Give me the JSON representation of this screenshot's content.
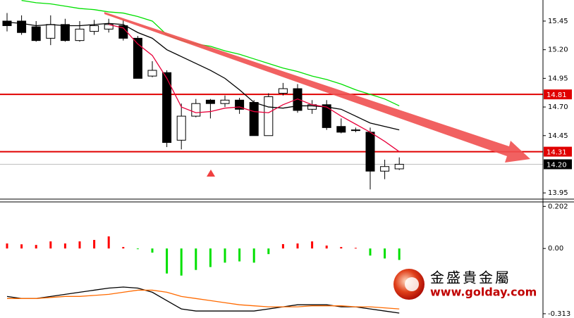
{
  "chart_data": [
    {
      "type": "candlestick",
      "open": [
        15.45,
        15.45,
        15.4,
        15.3,
        15.42,
        15.28,
        15.36,
        15.38,
        15.41,
        15.3,
        14.97,
        15.0,
        14.41,
        14.62,
        14.76,
        14.73,
        14.76,
        14.74,
        14.45,
        14.82,
        14.86,
        14.68,
        14.72,
        14.53,
        14.5,
        14.48,
        14.14,
        14.16
      ],
      "high": [
        15.52,
        15.5,
        15.45,
        15.5,
        15.47,
        15.45,
        15.46,
        15.47,
        15.46,
        15.32,
        15.1,
        15.02,
        14.73,
        14.77,
        14.77,
        14.8,
        14.78,
        14.76,
        14.82,
        14.91,
        14.9,
        14.76,
        14.76,
        14.6,
        14.52,
        14.52,
        14.24,
        14.26
      ],
      "low": [
        15.36,
        15.33,
        15.27,
        15.24,
        15.27,
        15.27,
        15.33,
        15.35,
        15.28,
        14.95,
        14.96,
        14.35,
        14.33,
        14.61,
        14.6,
        14.7,
        14.64,
        14.45,
        14.45,
        14.8,
        14.65,
        14.64,
        14.5,
        14.47,
        14.48,
        13.98,
        14.07,
        14.15
      ],
      "close": [
        15.41,
        15.35,
        15.28,
        15.42,
        15.28,
        15.38,
        15.41,
        15.42,
        15.3,
        14.95,
        15.02,
        14.39,
        14.62,
        14.73,
        14.73,
        14.76,
        14.68,
        14.45,
        14.79,
        14.86,
        14.67,
        14.72,
        14.52,
        14.48,
        14.5,
        14.14,
        14.18,
        14.2
      ],
      "up_color": "#ffffff",
      "down_color": "#000000",
      "lines": [
        {
          "color": "#00e000",
          "values": [
            null,
            15.63,
            15.61,
            15.6,
            15.58,
            15.56,
            15.55,
            15.53,
            15.52,
            15.49,
            15.45,
            15.33,
            15.28,
            15.25,
            15.23,
            15.19,
            15.16,
            15.12,
            15.08,
            15.04,
            15.01,
            14.97,
            14.94,
            14.9,
            14.85,
            14.81,
            14.77,
            14.71
          ]
        },
        {
          "color": "#000000",
          "values": [
            15.44,
            15.43,
            15.41,
            15.42,
            15.41,
            15.41,
            15.42,
            15.43,
            15.42,
            15.35,
            15.3,
            15.2,
            15.14,
            15.08,
            15.02,
            14.95,
            14.85,
            14.74,
            14.7,
            14.69,
            14.71,
            14.71,
            14.7,
            14.68,
            14.62,
            14.56,
            14.53,
            14.5
          ]
        },
        {
          "color": "#e8003a",
          "values": [
            null,
            null,
            null,
            null,
            null,
            null,
            null,
            15.42,
            15.39,
            15.25,
            15.15,
            14.95,
            14.7,
            14.65,
            14.66,
            14.69,
            14.7,
            14.66,
            14.65,
            14.72,
            14.77,
            14.72,
            14.7,
            14.62,
            14.55,
            14.48,
            14.4,
            14.31
          ]
        }
      ],
      "hlines": [
        {
          "value": 14.81,
          "color": "#e00000"
        },
        {
          "value": 14.31,
          "color": "#e00000"
        }
      ],
      "current_price": {
        "value": 14.2,
        "label": "14.20"
      },
      "ylim": [
        13.902,
        15.634
      ],
      "yticks": [
        15.45,
        {
          "value": 15.2,
          "label": "15.20"
        },
        14.95,
        {
          "value": 14.7,
          "label": "14.70"
        },
        14.45,
        13.95
      ]
    },
    {
      "type": "bar",
      "values": [
        0.024,
        0.02,
        0.017,
        0.034,
        0.024,
        0.034,
        0.041,
        0.058,
        0.007,
        -0.003,
        -0.02,
        -0.12,
        -0.13,
        -0.103,
        -0.089,
        -0.068,
        -0.062,
        -0.068,
        -0.027,
        0.021,
        0.024,
        0.034,
        0.014,
        0.007,
        0.003,
        -0.034,
        -0.048,
        -0.055
      ],
      "up_color": "#ff0000",
      "down_color": "#00e000",
      "lines": [
        {
          "color": "#000000",
          "values": [
            -0.23,
            -0.24,
            -0.24,
            -0.23,
            -0.22,
            -0.21,
            -0.2,
            -0.19,
            -0.185,
            -0.19,
            -0.21,
            -0.25,
            -0.29,
            -0.3,
            -0.3,
            -0.3,
            -0.3,
            -0.3,
            -0.29,
            -0.28,
            -0.27,
            -0.27,
            -0.27,
            -0.28,
            -0.28,
            -0.29,
            -0.3,
            -0.31
          ]
        },
        {
          "color": "#ff6a00",
          "values": [
            -0.24,
            -0.24,
            -0.24,
            -0.235,
            -0.23,
            -0.23,
            -0.225,
            -0.22,
            -0.21,
            -0.2,
            -0.2,
            -0.21,
            -0.23,
            -0.24,
            -0.25,
            -0.26,
            -0.27,
            -0.275,
            -0.28,
            -0.28,
            -0.28,
            -0.275,
            -0.275,
            -0.275,
            -0.28,
            -0.28,
            -0.285,
            -0.29
          ]
        }
      ],
      "ylim": [
        -0.32,
        0.22
      ],
      "yticks": [
        0.202,
        {
          "value": 0,
          "label": "0.00"
        },
        -0.313
      ]
    }
  ],
  "watermark": {
    "name": "金盛貴金屬",
    "url": "www.golday.com"
  }
}
